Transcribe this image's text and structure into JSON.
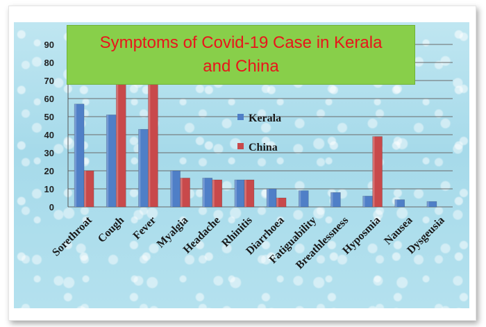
{
  "chart_data": {
    "type": "bar",
    "title": "Symptoms of Covid-19 Case in Kerala and China",
    "title_lines": [
      "Symptoms of Covid-19 Case in Kerala",
      "and China"
    ],
    "categories": [
      "Sorethroat",
      "Cough",
      "Fever",
      "Myalgia",
      "Headache",
      "Rhinitis",
      "Diarrhoea",
      "Fatiguability",
      "Breathlessness",
      "Hyposmia",
      "Nausea",
      "Dysgeusia"
    ],
    "series": [
      {
        "name": "Kerala",
        "color": "#4f7fc7",
        "values": [
          57,
          51,
          43,
          20,
          16,
          15,
          10,
          9,
          8,
          6,
          4,
          3
        ]
      },
      {
        "name": "China",
        "color": "#c8494b",
        "values": [
          20,
          70,
          70,
          16,
          15,
          15,
          5,
          null,
          null,
          39,
          null,
          null
        ]
      }
    ],
    "ylim": [
      0,
      90
    ],
    "yticks": [
      0,
      10,
      20,
      30,
      40,
      50,
      60,
      70,
      80,
      90
    ],
    "xlabel": "",
    "ylabel": "",
    "grid": true,
    "legend_position": "center"
  }
}
